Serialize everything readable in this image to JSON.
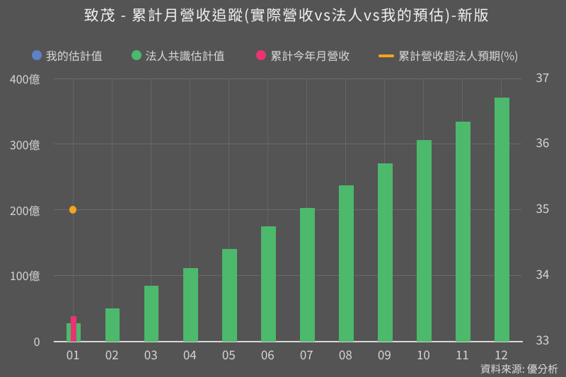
{
  "title": "致茂 - 累計月營收追蹤(實際營收vs法人vs我的預估)-新版",
  "source_note": "資料來源: 優分析",
  "colors": {
    "background": "#545454",
    "my_estimate_blue": "#5e81c8",
    "consensus_green": "#4cb96c",
    "actual_pink": "#e93472",
    "surprise_orange": "#f3a51d",
    "gridline": "#6a6a6a",
    "axis_line": "#d8d8d8",
    "text": "#d6d6d6",
    "title_text": "#f0f0f0"
  },
  "legend": {
    "items": [
      {
        "label": "我的估計值",
        "marker": "circle",
        "color": "#5e81c8"
      },
      {
        "label": "法人共識估計值",
        "marker": "circle",
        "color": "#4cb96c"
      },
      {
        "label": "累計今年月營收",
        "marker": "circle",
        "color": "#e93472"
      },
      {
        "label": "累計營收超法人預期(%)",
        "marker": "line",
        "color": "#f3a51d"
      }
    ]
  },
  "chart_data": {
    "type": "bar",
    "title": "致茂 - 累計月營收追蹤(實際營收vs法人vs我的預估)-新版",
    "categories": [
      "01",
      "02",
      "03",
      "04",
      "05",
      "06",
      "07",
      "08",
      "09",
      "10",
      "11",
      "12"
    ],
    "series": [
      {
        "name": "我的估計值",
        "type": "bar",
        "axis": "left",
        "color": "#5e81c8",
        "values": [
          null,
          null,
          null,
          null,
          null,
          null,
          null,
          null,
          null,
          null,
          null,
          null
        ]
      },
      {
        "name": "法人共識估計值",
        "type": "bar",
        "axis": "left",
        "color": "#4cb96c",
        "values": [
          27.0,
          49.9,
          83.8,
          111.5,
          140.6,
          174.6,
          203.0,
          237.7,
          270.2,
          305.8,
          334.2,
          371.2
        ]
      },
      {
        "name": "累計今年月營收",
        "type": "bar",
        "axis": "left",
        "color": "#e93472",
        "values": [
          37.4,
          null,
          null,
          null,
          null,
          null,
          null,
          null,
          null,
          null,
          null,
          null
        ]
      },
      {
        "name": "累計營收超法人預期(%)",
        "type": "line",
        "axis": "right",
        "color": "#f3a51d",
        "values": [
          35.0,
          null,
          null,
          null,
          null,
          null,
          null,
          null,
          null,
          null,
          null,
          null
        ]
      }
    ],
    "y_axis_left": {
      "tick_labels": [
        "400億",
        "300億",
        "200億",
        "100億",
        "0"
      ],
      "tick_values": [
        400,
        300,
        200,
        100,
        0
      ],
      "min": 0,
      "max": 400,
      "unit": "億"
    },
    "y_axis_right": {
      "tick_labels": [
        "37",
        "36",
        "35",
        "34",
        "33"
      ],
      "tick_values": [
        37,
        36,
        35,
        34,
        33
      ],
      "min": 33,
      "max": 37
    },
    "x_axis": {
      "tick_labels": [
        "01",
        "02",
        "03",
        "04",
        "05",
        "06",
        "07",
        "08",
        "09",
        "10",
        "11",
        "12"
      ]
    },
    "legend_entries": [
      "我的估計值",
      "法人共識估計值",
      "累計今年月營收",
      "累計營收超法人預期(%)"
    ],
    "grid": true,
    "legend_position": "top"
  }
}
